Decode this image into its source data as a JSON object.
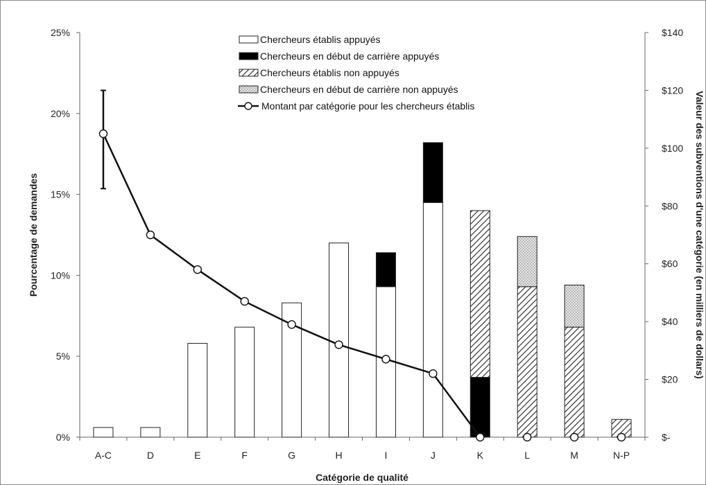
{
  "chart_data": {
    "type": "bar",
    "stacked": true,
    "categories": [
      "A-C",
      "D",
      "E",
      "F",
      "G",
      "H",
      "I",
      "J",
      "K",
      "L",
      "M",
      "N-P"
    ],
    "xlabel": "Catégorie de qualité",
    "ylabel": "Pourcentage de demandes",
    "y2label": "Valeur des subventions d'une catégorie (en milliers de dollars)",
    "ylim": [
      0,
      25
    ],
    "y2lim": [
      0,
      140
    ],
    "yticks": [
      "0%",
      "5%",
      "10%",
      "15%",
      "20%",
      "25%"
    ],
    "y2ticks": [
      "$-",
      "$20",
      "$40",
      "$60",
      "$80",
      "$100",
      "$120",
      "$140"
    ],
    "grid": false,
    "legend_position": "top-center",
    "series": [
      {
        "name": "Chercheurs établis appuyés",
        "pattern": "white",
        "values": [
          0.6,
          0.6,
          5.8,
          6.8,
          8.3,
          12.0,
          9.3,
          14.5,
          0,
          0,
          0,
          0
        ]
      },
      {
        "name": "Chercheurs en début de carrière appuyés",
        "pattern": "black",
        "values": [
          0,
          0,
          0,
          0,
          0,
          0,
          2.1,
          3.7,
          3.7,
          0,
          0,
          0
        ]
      },
      {
        "name": "Chercheurs établis non appuyés",
        "pattern": "hatched",
        "values": [
          0,
          0,
          0,
          0,
          0,
          0,
          0,
          0,
          10.3,
          9.3,
          6.8,
          1.1
        ]
      },
      {
        "name": "Chercheurs en début de carrière non appuyés",
        "pattern": "dotted",
        "values": [
          0,
          0,
          0,
          0,
          0,
          0,
          0,
          0,
          0,
          3.1,
          2.6,
          0
        ]
      }
    ],
    "line_series": {
      "name": "Montant par catégorie pour les chercheurs établis",
      "axis": "right",
      "values": [
        105,
        70,
        58,
        47,
        39,
        32,
        27,
        22,
        0,
        0,
        0,
        0
      ],
      "error_bar": {
        "category": "A-C",
        "low": 86,
        "high": 120
      }
    },
    "colors": {
      "black": "#000000",
      "white": "#ffffff",
      "line": "#111111",
      "stroke": "#222222",
      "dot": "#b9b9b9"
    }
  }
}
